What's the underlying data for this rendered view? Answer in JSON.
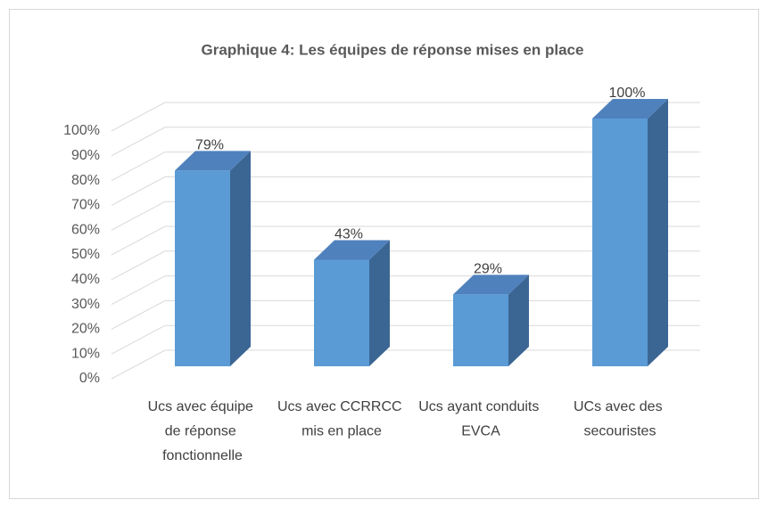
{
  "chart_data": {
    "type": "bar3d",
    "title": "Graphique 4: Les équipes de réponse mises en place",
    "categories": [
      "Ucs avec équipe de réponse fonctionnelle",
      "Ucs avec CCRRCC mis en place",
      "Ucs ayant conduits EVCA",
      "UCs avec des secouristes"
    ],
    "values": [
      79,
      43,
      29,
      100
    ],
    "value_labels": [
      "79%",
      "43%",
      "29%",
      "100%"
    ],
    "color": "#5b9bd5",
    "ylim": [
      0,
      100
    ],
    "yticks": [
      {
        "value": 0,
        "label": "0%"
      },
      {
        "value": 10,
        "label": "10%"
      },
      {
        "value": 20,
        "label": "20%"
      },
      {
        "value": 30,
        "label": "30%"
      },
      {
        "value": 40,
        "label": "40%"
      },
      {
        "value": 50,
        "label": "50%"
      },
      {
        "value": 60,
        "label": "60%"
      },
      {
        "value": 70,
        "label": "70%"
      },
      {
        "value": 80,
        "label": "80%"
      },
      {
        "value": 90,
        "label": "90%"
      },
      {
        "value": 100,
        "label": "100%"
      }
    ],
    "grid": true
  }
}
